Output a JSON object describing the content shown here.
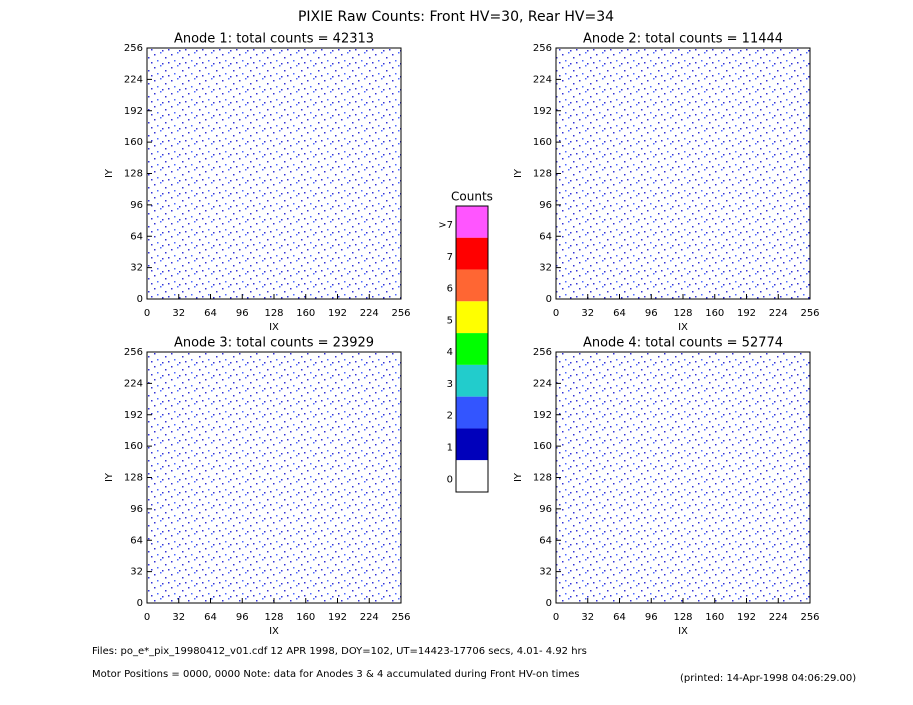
{
  "title": "PIXIE Raw Counts:  Front HV=30, Rear HV=34",
  "chart_data": [
    {
      "type": "heatmap",
      "title": "Anode 1: total counts = 42313",
      "xlabel": "IX",
      "ylabel": "IY",
      "xlim": [
        0,
        256
      ],
      "ylim": [
        0,
        256
      ],
      "xticks": [
        0,
        32,
        64,
        96,
        128,
        160,
        192,
        224,
        256
      ],
      "yticks": [
        0,
        32,
        64,
        96,
        128,
        160,
        192,
        224,
        256
      ]
    },
    {
      "type": "heatmap",
      "title": "Anode 2: total counts = 11444",
      "xlabel": "IX",
      "ylabel": "IY",
      "xlim": [
        0,
        256
      ],
      "ylim": [
        0,
        256
      ],
      "xticks": [
        0,
        32,
        64,
        96,
        128,
        160,
        192,
        224,
        256
      ],
      "yticks": [
        0,
        32,
        64,
        96,
        128,
        160,
        192,
        224,
        256
      ]
    },
    {
      "type": "heatmap",
      "title": "Anode 3: total counts = 23929",
      "xlabel": "IX",
      "ylabel": "IY",
      "xlim": [
        0,
        256
      ],
      "ylim": [
        0,
        256
      ],
      "xticks": [
        0,
        32,
        64,
        96,
        128,
        160,
        192,
        224,
        256
      ],
      "yticks": [
        0,
        32,
        64,
        96,
        128,
        160,
        192,
        224,
        256
      ]
    },
    {
      "type": "heatmap",
      "title": "Anode 4: total counts = 52774",
      "xlabel": "IX",
      "ylabel": "IY",
      "xlim": [
        0,
        256
      ],
      "ylim": [
        0,
        256
      ],
      "xticks": [
        0,
        32,
        64,
        96,
        128,
        160,
        192,
        224,
        256
      ],
      "yticks": [
        0,
        32,
        64,
        96,
        128,
        160,
        192,
        224,
        256
      ]
    }
  ],
  "colorbar": {
    "title": "Counts",
    "levels": [
      {
        "label": ">7",
        "color": "#ff55ff"
      },
      {
        "label": "7",
        "color": "#ff0000"
      },
      {
        "label": "6",
        "color": "#ff6633"
      },
      {
        "label": "5",
        "color": "#ffff00"
      },
      {
        "label": "4",
        "color": "#00ff00"
      },
      {
        "label": "3",
        "color": "#22cccc"
      },
      {
        "label": "2",
        "color": "#3355ff"
      },
      {
        "label": "1",
        "color": "#0000bb"
      },
      {
        "label": "0",
        "color": "#ffffff"
      }
    ]
  },
  "footer": {
    "files": "Files: po_e*_pix_19980412_v01.cdf    12 APR 1998, DOY=102, UT=14423-17706 secs,  4.01- 4.92 hrs",
    "motor": "Motor Positions = 0000, 0000    Note: data for Anodes 3 & 4 accumulated during Front HV-on times",
    "printed": "(printed: 14-Apr-1998 04:06:29.00)"
  }
}
